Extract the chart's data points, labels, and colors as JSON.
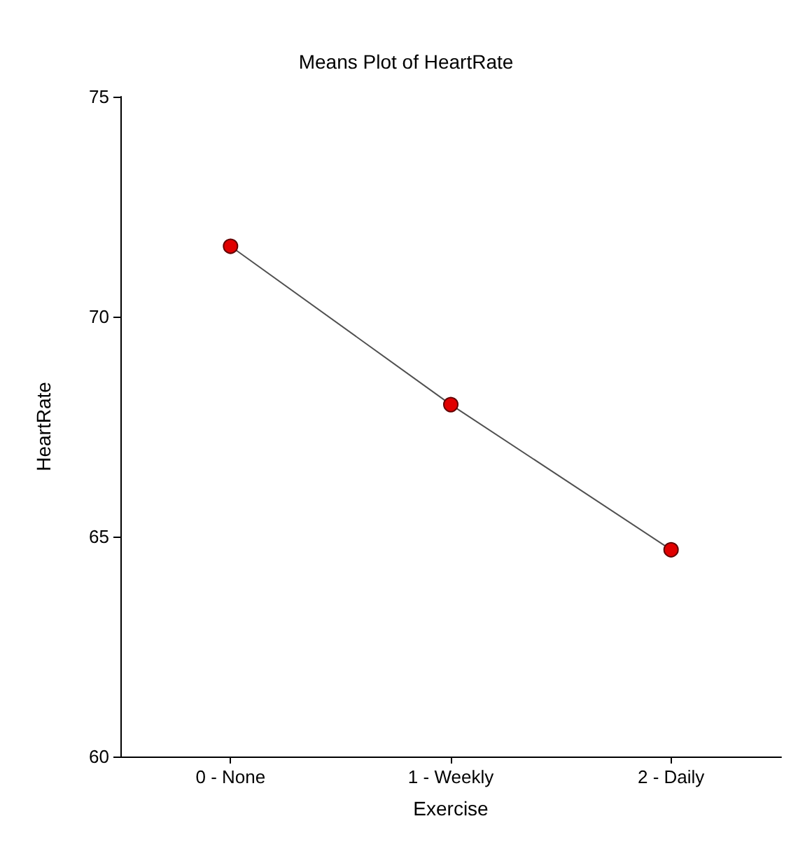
{
  "chart_data": {
    "type": "line",
    "title": "Means Plot of HeartRate",
    "xlabel": "Exercise",
    "ylabel": "HeartRate",
    "categories": [
      "0 - None",
      "1 - Weekly",
      "2 - Daily"
    ],
    "series": [
      {
        "color": "#e00000",
        "values": [
          71.6,
          68.0,
          64.7
        ]
      }
    ],
    "ylim": [
      60,
      75
    ],
    "yticks": [
      60,
      65,
      70,
      75
    ],
    "grid": false,
    "marker": "circle",
    "line_style": "solid"
  }
}
